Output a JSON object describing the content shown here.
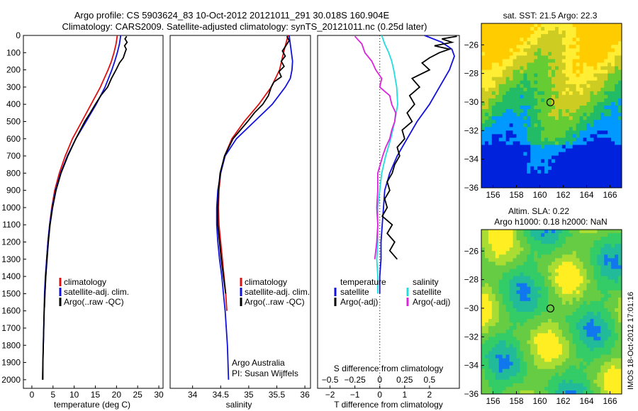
{
  "header": {
    "line1": "Argo profile: CS 5903624_83 10-Oct-2012 20121011_291 30.018S 160.904E",
    "line2": "Climatology: CARS2009. Satellite-adjusted climatology: synTS_20121011.nc (0.25d later)"
  },
  "colors": {
    "climatology": "#dd1111",
    "satellite": "#1111dd",
    "argo": "#000000",
    "salinity_satellite": "#22dddd",
    "salinity_argo": "#dd22dd"
  },
  "chart_data": [
    {
      "type": "line",
      "panel": "temperature",
      "xlabel": "temperature (deg C)",
      "ylabel": "",
      "xlim": [
        -2,
        31
      ],
      "ylim": [
        2050,
        0
      ],
      "xticks": [
        0,
        5,
        10,
        15,
        20,
        25,
        30
      ],
      "yticks": [
        0,
        100,
        200,
        300,
        400,
        500,
        600,
        700,
        800,
        900,
        1000,
        1100,
        1200,
        1300,
        1400,
        1500,
        1600,
        1700,
        1800,
        1900,
        2000
      ],
      "legend": [
        "climatology",
        "satellite-adj. clim.",
        "Argo(..raw -QC)"
      ],
      "legend_position": "lower-right",
      "series": [
        {
          "name": "climatology",
          "depth": [
            0,
            50,
            100,
            150,
            200,
            300,
            400,
            500,
            600,
            700,
            800,
            900,
            1000,
            1100,
            1200,
            1300,
            1400,
            1500,
            1580
          ],
          "values": [
            20.2,
            19.9,
            19.4,
            18.8,
            18.0,
            16.2,
            14.0,
            11.8,
            9.6,
            7.9,
            6.5,
            5.4,
            4.7,
            4.2,
            3.8,
            3.5,
            3.3,
            3.1,
            3.0
          ]
        },
        {
          "name": "satellite-adj. clim.",
          "depth": [
            0,
            50,
            100,
            150,
            200,
            300,
            400,
            500,
            600,
            700,
            800,
            900,
            1000,
            1100,
            1200,
            1300,
            1400,
            1500,
            1600,
            1700,
            1800,
            1900,
            2000
          ],
          "values": [
            21.0,
            20.7,
            20.2,
            19.6,
            18.9,
            17.3,
            15.2,
            12.8,
            10.4,
            8.4,
            6.8,
            5.6,
            4.8,
            4.2,
            3.8,
            3.5,
            3.2,
            3.0,
            2.9,
            2.8,
            2.7,
            2.6,
            2.5
          ]
        },
        {
          "name": "Argo(..raw -QC)",
          "depth": [
            5,
            20,
            40,
            60,
            80,
            100,
            130,
            160,
            200,
            250,
            300,
            350,
            400,
            450,
            500,
            600,
            700,
            800,
            900,
            1000,
            1100,
            1200,
            1300,
            1400,
            1500,
            1600,
            1700,
            1800,
            1900,
            2000
          ],
          "values": [
            22.4,
            22.0,
            22.5,
            21.9,
            22.3,
            22.0,
            21.6,
            20.7,
            19.9,
            18.8,
            17.9,
            16.3,
            15.0,
            13.8,
            12.5,
            10.4,
            8.5,
            6.9,
            5.7,
            4.9,
            4.3,
            3.9,
            3.6,
            3.3,
            3.1,
            2.9,
            2.8,
            2.7,
            2.6,
            2.6
          ]
        }
      ]
    },
    {
      "type": "line",
      "panel": "salinity",
      "xlabel": "salinity",
      "ylabel": "",
      "xlim": [
        33.6,
        36.1
      ],
      "ylim": [
        2050,
        0
      ],
      "xticks": [
        34,
        34.5,
        35,
        35.5,
        36
      ],
      "legend": [
        "climatology",
        "satellite-adj. clim.",
        "Argo(..raw -QC)"
      ],
      "legend_position": "lower-right",
      "annotations": [
        "Argo Australia",
        "PI: Susan Wijffels"
      ],
      "series": [
        {
          "name": "climatology",
          "depth": [
            0,
            100,
            200,
            300,
            400,
            500,
            600,
            700,
            800,
            900,
            1000,
            1100,
            1200,
            1300,
            1400,
            1500,
            1600
          ],
          "values": [
            35.7,
            35.62,
            35.55,
            35.4,
            35.18,
            34.92,
            34.7,
            34.57,
            34.5,
            34.47,
            34.46,
            34.47,
            34.5,
            34.53,
            34.56,
            34.59,
            34.61
          ]
        },
        {
          "name": "satellite-adj. clim.",
          "depth": [
            0,
            50,
            100,
            150,
            200,
            250,
            300,
            400,
            500,
            600,
            700,
            800,
            900,
            1000,
            1100,
            1200,
            1300,
            1400,
            1500,
            1600,
            1700,
            1800,
            1900,
            2000
          ],
          "values": [
            35.72,
            35.74,
            35.76,
            35.78,
            35.77,
            35.74,
            35.65,
            35.42,
            35.1,
            34.78,
            34.58,
            34.5,
            34.45,
            34.43,
            34.43,
            34.45,
            34.48,
            34.52,
            34.55,
            34.58,
            34.6,
            34.62,
            34.63,
            34.64
          ]
        },
        {
          "name": "Argo(..raw -QC)",
          "depth": [
            5,
            30,
            60,
            90,
            120,
            150,
            180,
            210,
            240,
            270,
            300,
            350,
            400,
            450,
            500,
            600,
            700,
            800,
            900,
            1000,
            1100,
            1200,
            1300,
            1400,
            1500
          ],
          "values": [
            35.68,
            35.72,
            35.66,
            35.6,
            35.65,
            35.58,
            35.63,
            35.54,
            35.58,
            35.45,
            35.4,
            35.35,
            35.25,
            35.1,
            34.98,
            34.72,
            34.57,
            34.49,
            34.46,
            34.45,
            34.45,
            34.48,
            34.51,
            34.55,
            34.59
          ]
        }
      ]
    },
    {
      "type": "line",
      "panel": "difference",
      "xlabel": "T difference from climatology",
      "xlabel_top": "S difference from climatology",
      "ylabel": "",
      "xlim": [
        -2.5,
        3.2
      ],
      "ylim": [
        2050,
        0
      ],
      "xticks": [
        -2,
        -1,
        0,
        1,
        2
      ],
      "xtick_labels": [
        "−2",
        "−1",
        "0",
        "1",
        "2"
      ],
      "xticks_s": [
        -0.5,
        -0.25,
        0,
        0.25,
        0.5
      ],
      "xtick_labels_s": [
        "−0.5",
        "−0.25",
        "0",
        "0.25",
        "0.5"
      ],
      "legend": [
        "temperature",
        "satellite",
        "Argo(-adj)",
        "salinity",
        "satellite",
        "Argo(-adj)"
      ],
      "legend_position": "lower-center",
      "series": [
        {
          "name": "satellite",
          "axis": "T",
          "depth": [
            0,
            40,
            80,
            120,
            160,
            200,
            300,
            400,
            500,
            600,
            700,
            800,
            900,
            1000,
            1100,
            1200,
            1300,
            1400,
            1500
          ],
          "values": [
            1.8,
            2.5,
            2.9,
            3.0,
            2.9,
            2.8,
            2.4,
            2.0,
            1.5,
            1.1,
            0.7,
            0.4,
            0.2,
            0.15,
            0.1,
            0.05,
            0.05,
            0.0,
            0.0
          ]
        },
        {
          "name": "Argo(-adj)",
          "axis": "T",
          "depth": [
            5,
            20,
            40,
            60,
            80,
            100,
            130,
            160,
            200,
            250,
            300,
            350,
            400,
            450,
            500,
            550,
            600,
            650,
            700,
            750,
            800,
            850,
            900,
            950,
            1000,
            1050,
            1100,
            1150,
            1200,
            1250,
            1300
          ],
          "values": [
            3.1,
            2.5,
            2.9,
            2.2,
            2.8,
            2.4,
            2.0,
            1.7,
            2.0,
            1.3,
            1.6,
            1.2,
            1.4,
            1.1,
            1.3,
            0.9,
            1.0,
            0.7,
            0.8,
            0.6,
            0.5,
            0.3,
            0.4,
            0.2,
            0.3,
            0.1,
            0.5,
            0.3,
            0.6,
            0.4,
            0.7
          ]
        },
        {
          "name": "satellite",
          "axis": "S",
          "depth": [
            0,
            50,
            100,
            150,
            200,
            300,
            400,
            500,
            600,
            700,
            800,
            900,
            1000,
            1100,
            1200,
            1300,
            1400,
            1500
          ],
          "values": [
            0.02,
            0.05,
            0.09,
            0.12,
            0.14,
            0.17,
            0.18,
            0.15,
            0.11,
            0.06,
            0.02,
            0.0,
            -0.02,
            -0.02,
            -0.02,
            -0.03,
            -0.02,
            -0.02
          ]
        },
        {
          "name": "Argo(-adj)",
          "axis": "S",
          "depth": [
            5,
            50,
            100,
            150,
            200,
            250,
            300,
            350,
            400,
            450,
            500,
            550,
            600,
            650,
            700,
            800,
            900,
            1000,
            1100,
            1200,
            1300
          ],
          "values": [
            -0.25,
            -0.18,
            -0.15,
            -0.08,
            -0.04,
            0.02,
            0.0,
            0.1,
            0.12,
            0.16,
            0.15,
            0.12,
            0.1,
            0.06,
            0.03,
            -0.02,
            -0.02,
            -0.03,
            -0.02,
            -0.03,
            -0.05
          ]
        }
      ]
    },
    {
      "type": "heatmap",
      "panel": "sst-map",
      "title": "sat. SST: 21.5  Argo: 22.3",
      "xlim": [
        155,
        167
      ],
      "ylim": [
        -36,
        -24.5
      ],
      "xticks": [
        156,
        158,
        160,
        162,
        164,
        166
      ],
      "yticks": [
        -26,
        -28,
        -30,
        -32,
        -34,
        -36
      ],
      "marker": {
        "lon": 160.904,
        "lat": -30.018
      }
    },
    {
      "type": "heatmap",
      "panel": "sla-map",
      "title": "Altim. SLA: 0.22",
      "subtitle": "Argo h1000: 0.18 h2000: NaN",
      "xlim": [
        155,
        167
      ],
      "ylim": [
        -36,
        -24.5
      ],
      "xticks": [
        156,
        158,
        160,
        162,
        164,
        166
      ],
      "yticks": [
        -26,
        -28,
        -30,
        -32,
        -34,
        -36
      ],
      "marker": {
        "lon": 160.904,
        "lat": -30.018
      }
    }
  ],
  "side_label": "IMOS 18-Oct-2012 17:01:16"
}
